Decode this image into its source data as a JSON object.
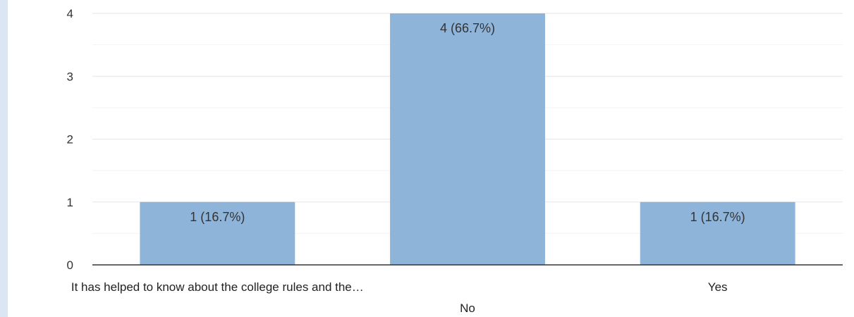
{
  "chart_data": {
    "type": "bar",
    "categories": [
      "It has helped to know about the college rules and the…",
      "No",
      "Yes"
    ],
    "values": [
      1,
      4,
      1
    ],
    "data_labels": [
      "1 (16.7%)",
      "4 (66.7%)",
      "1 (16.7%)"
    ],
    "y_ticks": [
      "0",
      "1",
      "2",
      "3",
      "4"
    ],
    "ylim": [
      0,
      4
    ],
    "title": "",
    "xlabel": "",
    "ylabel": "",
    "grid": true,
    "legend": "none",
    "colors": {
      "bar": "#8eb4da",
      "grid_major": "#e6e6e6",
      "grid_minor": "#f2f2f2",
      "axis": "#333333",
      "side_strip": "#dbe6f3"
    }
  }
}
